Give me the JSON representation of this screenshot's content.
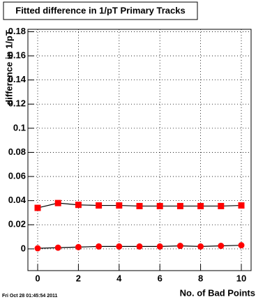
{
  "chart_data": {
    "type": "scatter",
    "title": "Fitted difference in 1/pT Primary Tracks",
    "x_label": "No. of Bad Points",
    "y_label": "difference in 1/pT",
    "footer": "Fri Oct 28 01:45:54 2011",
    "x": [
      0,
      1,
      2,
      3,
      4,
      5,
      6,
      7,
      8,
      9,
      10
    ],
    "series": [
      {
        "color": "#ff0000",
        "line_color": "#000000",
        "marker": "square",
        "values": [
          0.034,
          0.038,
          0.0365,
          0.036,
          0.036,
          0.0355,
          0.0355,
          0.0355,
          0.0355,
          0.0355,
          0.036
        ]
      },
      {
        "color": "#ff0000",
        "line_color": "#000000",
        "marker": "circle",
        "values": [
          0.0005,
          0.001,
          0.0015,
          0.002,
          0.002,
          0.002,
          0.002,
          0.0025,
          0.002,
          0.0025,
          0.003
        ]
      }
    ],
    "xlim": [
      -0.48,
      10.48
    ],
    "xticks": [
      0,
      2,
      4,
      6,
      8,
      10
    ],
    "ylim": [
      -0.018,
      0.182
    ],
    "yticks": [
      0,
      0.02,
      0.04,
      0.06,
      0.08,
      0.1,
      0.12,
      0.14,
      0.16,
      0.18
    ],
    "grid": true
  }
}
